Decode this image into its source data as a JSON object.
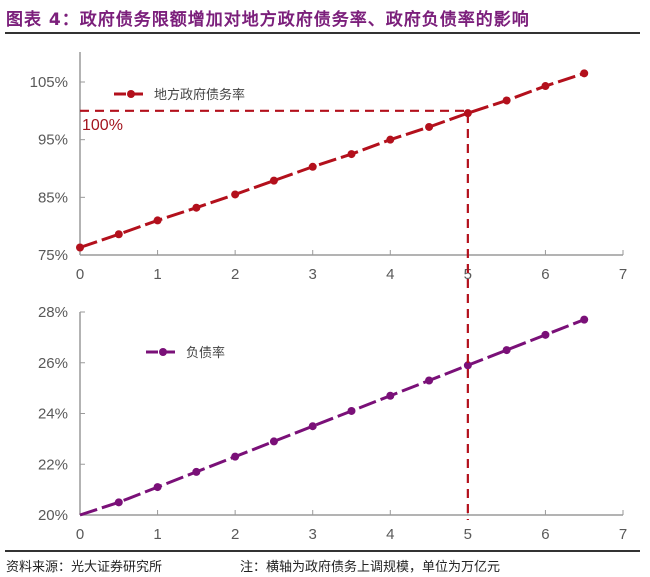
{
  "title": "图表 4：政府债务限额增加对地方政府债务率、政府负债率的影响",
  "footer": {
    "source": "资料来源：光大证券研究所",
    "note": "注：横轴为政府债务上调规模，单位为万亿元"
  },
  "colors": {
    "title": "#7b1f7b",
    "series_local_debt": "#b3101c",
    "series_liability": "#7a1078",
    "axis": "#999999",
    "reference_line": "#b3101c"
  },
  "chart_data": [
    {
      "type": "line",
      "title": "",
      "xlabel": "",
      "ylabel": "",
      "x_ticks": [
        "0",
        "1",
        "2",
        "3",
        "4",
        "5",
        "6",
        "7"
      ],
      "y_ticks": [
        "75%",
        "85%",
        "95%",
        "105%"
      ],
      "xlim": [
        0,
        7
      ],
      "ylim": [
        75,
        105
      ],
      "grid": false,
      "legend_position": "top-left",
      "x": [
        0,
        0.5,
        1,
        1.5,
        2,
        2.5,
        3,
        3.5,
        4,
        4.5,
        5,
        5.5,
        6,
        6.5
      ],
      "series": [
        {
          "name": "地方政府债务率",
          "values": [
            76.3,
            78.6,
            81.0,
            83.2,
            85.5,
            87.9,
            90.3,
            92.5,
            95.0,
            97.2,
            99.6,
            101.8,
            104.3,
            106.5
          ]
        }
      ],
      "annotations": [
        {
          "type": "hline",
          "y": 100,
          "label": "100%",
          "x_from": 0,
          "x_to": 5
        },
        {
          "type": "vline",
          "x": 5
        }
      ]
    },
    {
      "type": "line",
      "title": "",
      "xlabel": "",
      "ylabel": "",
      "x_ticks": [
        "0",
        "1",
        "2",
        "3",
        "4",
        "5",
        "6",
        "7"
      ],
      "y_ticks": [
        "20%",
        "22%",
        "24%",
        "26%",
        "28%"
      ],
      "xlim": [
        0,
        7
      ],
      "ylim": [
        20,
        28
      ],
      "grid": false,
      "legend_position": "top-left",
      "x": [
        0,
        0.5,
        1,
        1.5,
        2,
        2.5,
        3,
        3.5,
        4,
        4.5,
        5,
        5.5,
        6,
        6.5
      ],
      "series": [
        {
          "name": "负债率",
          "values": [
            20.0,
            20.5,
            21.1,
            21.7,
            22.3,
            22.9,
            23.5,
            24.1,
            24.7,
            25.3,
            25.9,
            26.5,
            27.1,
            27.7
          ]
        }
      ],
      "annotations": [
        {
          "type": "vline",
          "x": 5
        }
      ]
    }
  ]
}
